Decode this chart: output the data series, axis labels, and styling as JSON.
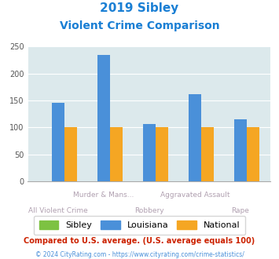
{
  "title_line1": "2019 Sibley",
  "title_line2": "Violent Crime Comparison",
  "groups": [
    {
      "label_row1": "",
      "label_row2": "All Violent Crime",
      "sibley": 0,
      "louisiana": 146,
      "national": 101
    },
    {
      "label_row1": "Murder & Mans...",
      "label_row2": "",
      "sibley": 0,
      "louisiana": 234,
      "national": 101
    },
    {
      "label_row1": "",
      "label_row2": "Robbery",
      "sibley": 0,
      "louisiana": 106,
      "national": 101
    },
    {
      "label_row1": "Aggravated Assault",
      "label_row2": "",
      "sibley": 0,
      "louisiana": 161,
      "national": 101
    },
    {
      "label_row1": "",
      "label_row2": "Rape",
      "sibley": 0,
      "louisiana": 115,
      "national": 101
    }
  ],
  "sibley_color": "#7dc242",
  "louisiana_color": "#4a90d9",
  "national_color": "#f5a623",
  "bg_color": "#dce9ec",
  "ylim": [
    0,
    250
  ],
  "yticks": [
    0,
    50,
    100,
    150,
    200,
    250
  ],
  "title_color": "#1a7fd4",
  "xlabel_color": "#b0a0b0",
  "footnote1": "Compared to U.S. average. (U.S. average equals 100)",
  "footnote2": "© 2024 CityRating.com - https://www.cityrating.com/crime-statistics/",
  "footnote1_color": "#cc2200",
  "footnote2_color": "#4a90d9",
  "legend_labels": [
    "Sibley",
    "Louisiana",
    "National"
  ],
  "bar_width": 0.28
}
